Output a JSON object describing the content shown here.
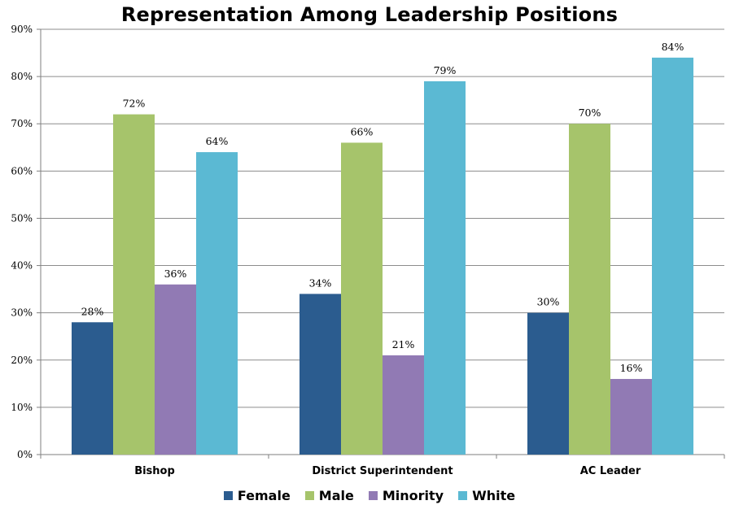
{
  "chart_data": {
    "type": "bar",
    "title": "Representation Among Leadership Positions",
    "categories": [
      "Bishop",
      "District Superintendent",
      "AC Leader"
    ],
    "series": [
      {
        "name": "Female",
        "values": [
          28,
          34,
          30
        ],
        "color": "#2B5C8F"
      },
      {
        "name": "Male",
        "values": [
          72,
          66,
          70
        ],
        "color": "#A6C46B"
      },
      {
        "name": "Minority",
        "values": [
          36,
          21,
          16
        ],
        "color": "#917AB4"
      },
      {
        "name": "White",
        "values": [
          64,
          79,
          84
        ],
        "color": "#5BB9D3"
      }
    ],
    "ylim": [
      0,
      90
    ],
    "yticks": [
      "0%",
      "10%",
      "20%",
      "30%",
      "40%",
      "50%",
      "60%",
      "70%",
      "80%",
      "90%"
    ],
    "value_suffix": "%",
    "grid": true,
    "legend_position": "bottom"
  }
}
